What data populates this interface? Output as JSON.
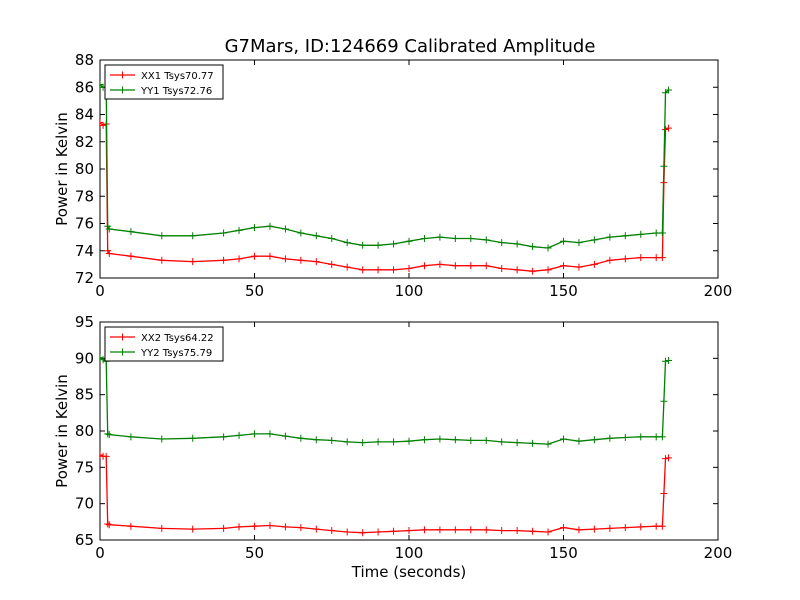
{
  "figure_title": "G7Mars, ID:124669 Calibrated Amplitude",
  "colors": {
    "red": "#ff0000",
    "green": "#008000"
  },
  "chart_data": [
    {
      "type": "line",
      "title": "G7Mars, ID:124669 Calibrated Amplitude",
      "xlabel": "",
      "ylabel": "Power in Kelvin",
      "xlim": [
        0,
        200
      ],
      "ylim": [
        72,
        88
      ],
      "xticks": [
        0,
        50,
        100,
        150,
        200
      ],
      "yticks": [
        72,
        74,
        76,
        78,
        80,
        82,
        84,
        86,
        88
      ],
      "grid": false,
      "legend_position": "top-left",
      "series": [
        {
          "name": "XX1 Tsys70.77",
          "color": "#ff0000",
          "x": [
            0,
            1,
            2,
            2.5,
            3,
            10,
            20,
            30,
            40,
            45,
            50,
            55,
            60,
            65,
            70,
            75,
            80,
            85,
            90,
            95,
            100,
            105,
            110,
            115,
            120,
            125,
            130,
            135,
            140,
            145,
            150,
            155,
            160,
            165,
            170,
            175,
            180,
            182,
            182.5,
            183,
            184
          ],
          "y": [
            83.4,
            83.2,
            83.3,
            74.0,
            73.8,
            73.6,
            73.3,
            73.2,
            73.3,
            73.4,
            73.6,
            73.6,
            73.4,
            73.3,
            73.2,
            73.0,
            72.8,
            72.6,
            72.6,
            72.6,
            72.7,
            72.9,
            73.0,
            72.9,
            72.9,
            72.9,
            72.7,
            72.6,
            72.5,
            72.6,
            72.9,
            72.8,
            73.0,
            73.3,
            73.4,
            73.5,
            73.5,
            73.5,
            79.0,
            82.9,
            83.0
          ]
        },
        {
          "name": "YY1 Tsys72.76",
          "color": "#008000",
          "x": [
            0,
            1,
            2,
            2.5,
            3,
            10,
            20,
            30,
            40,
            45,
            50,
            55,
            60,
            65,
            70,
            75,
            80,
            85,
            90,
            95,
            100,
            105,
            110,
            115,
            120,
            125,
            130,
            135,
            140,
            145,
            150,
            155,
            160,
            165,
            170,
            175,
            180,
            182,
            182.5,
            183,
            184
          ],
          "y": [
            86.2,
            86.0,
            86.0,
            75.8,
            75.6,
            75.4,
            75.1,
            75.1,
            75.3,
            75.5,
            75.7,
            75.8,
            75.6,
            75.3,
            75.1,
            74.9,
            74.6,
            74.4,
            74.4,
            74.5,
            74.7,
            74.9,
            75.0,
            74.9,
            74.9,
            74.8,
            74.6,
            74.5,
            74.3,
            74.2,
            74.7,
            74.6,
            74.8,
            75.0,
            75.1,
            75.2,
            75.3,
            75.3,
            80.2,
            85.6,
            85.8
          ]
        }
      ]
    },
    {
      "type": "line",
      "title": "",
      "xlabel": "Time (seconds)",
      "ylabel": "Power in Kelvin",
      "xlim": [
        0,
        200
      ],
      "ylim": [
        65,
        95
      ],
      "xticks": [
        0,
        50,
        100,
        150,
        200
      ],
      "yticks": [
        65,
        70,
        75,
        80,
        85,
        90,
        95
      ],
      "grid": false,
      "legend_position": "top-left",
      "series": [
        {
          "name": "XX2 Tsys64.22",
          "color": "#ff0000",
          "x": [
            0,
            1,
            2,
            2.5,
            3,
            10,
            20,
            30,
            40,
            45,
            50,
            55,
            60,
            65,
            70,
            75,
            80,
            85,
            90,
            95,
            100,
            105,
            110,
            115,
            120,
            125,
            130,
            135,
            140,
            145,
            150,
            155,
            160,
            165,
            170,
            175,
            180,
            182,
            182.5,
            183,
            184
          ],
          "y": [
            76.7,
            76.5,
            76.5,
            67.2,
            67.1,
            66.9,
            66.6,
            66.5,
            66.6,
            66.8,
            66.9,
            67.0,
            66.8,
            66.7,
            66.5,
            66.3,
            66.1,
            66.0,
            66.1,
            66.2,
            66.3,
            66.4,
            66.4,
            66.4,
            66.4,
            66.4,
            66.3,
            66.3,
            66.2,
            66.1,
            66.7,
            66.4,
            66.5,
            66.6,
            66.7,
            66.8,
            66.9,
            66.9,
            71.4,
            76.2,
            76.3
          ]
        },
        {
          "name": "YY2 Tsys75.79",
          "color": "#008000",
          "x": [
            0,
            1,
            2,
            2.5,
            3,
            10,
            20,
            30,
            40,
            45,
            50,
            55,
            60,
            65,
            70,
            75,
            80,
            85,
            90,
            95,
            100,
            105,
            110,
            115,
            120,
            125,
            130,
            135,
            140,
            145,
            150,
            155,
            160,
            165,
            170,
            175,
            180,
            182,
            182.5,
            183,
            184
          ],
          "y": [
            90.1,
            89.8,
            89.6,
            79.6,
            79.5,
            79.2,
            78.9,
            79.0,
            79.2,
            79.4,
            79.6,
            79.6,
            79.3,
            79.0,
            78.8,
            78.7,
            78.5,
            78.4,
            78.5,
            78.5,
            78.6,
            78.8,
            78.9,
            78.8,
            78.7,
            78.7,
            78.5,
            78.4,
            78.3,
            78.2,
            78.9,
            78.6,
            78.8,
            79.0,
            79.1,
            79.2,
            79.2,
            79.2,
            84.1,
            89.6,
            89.7
          ]
        }
      ]
    }
  ]
}
